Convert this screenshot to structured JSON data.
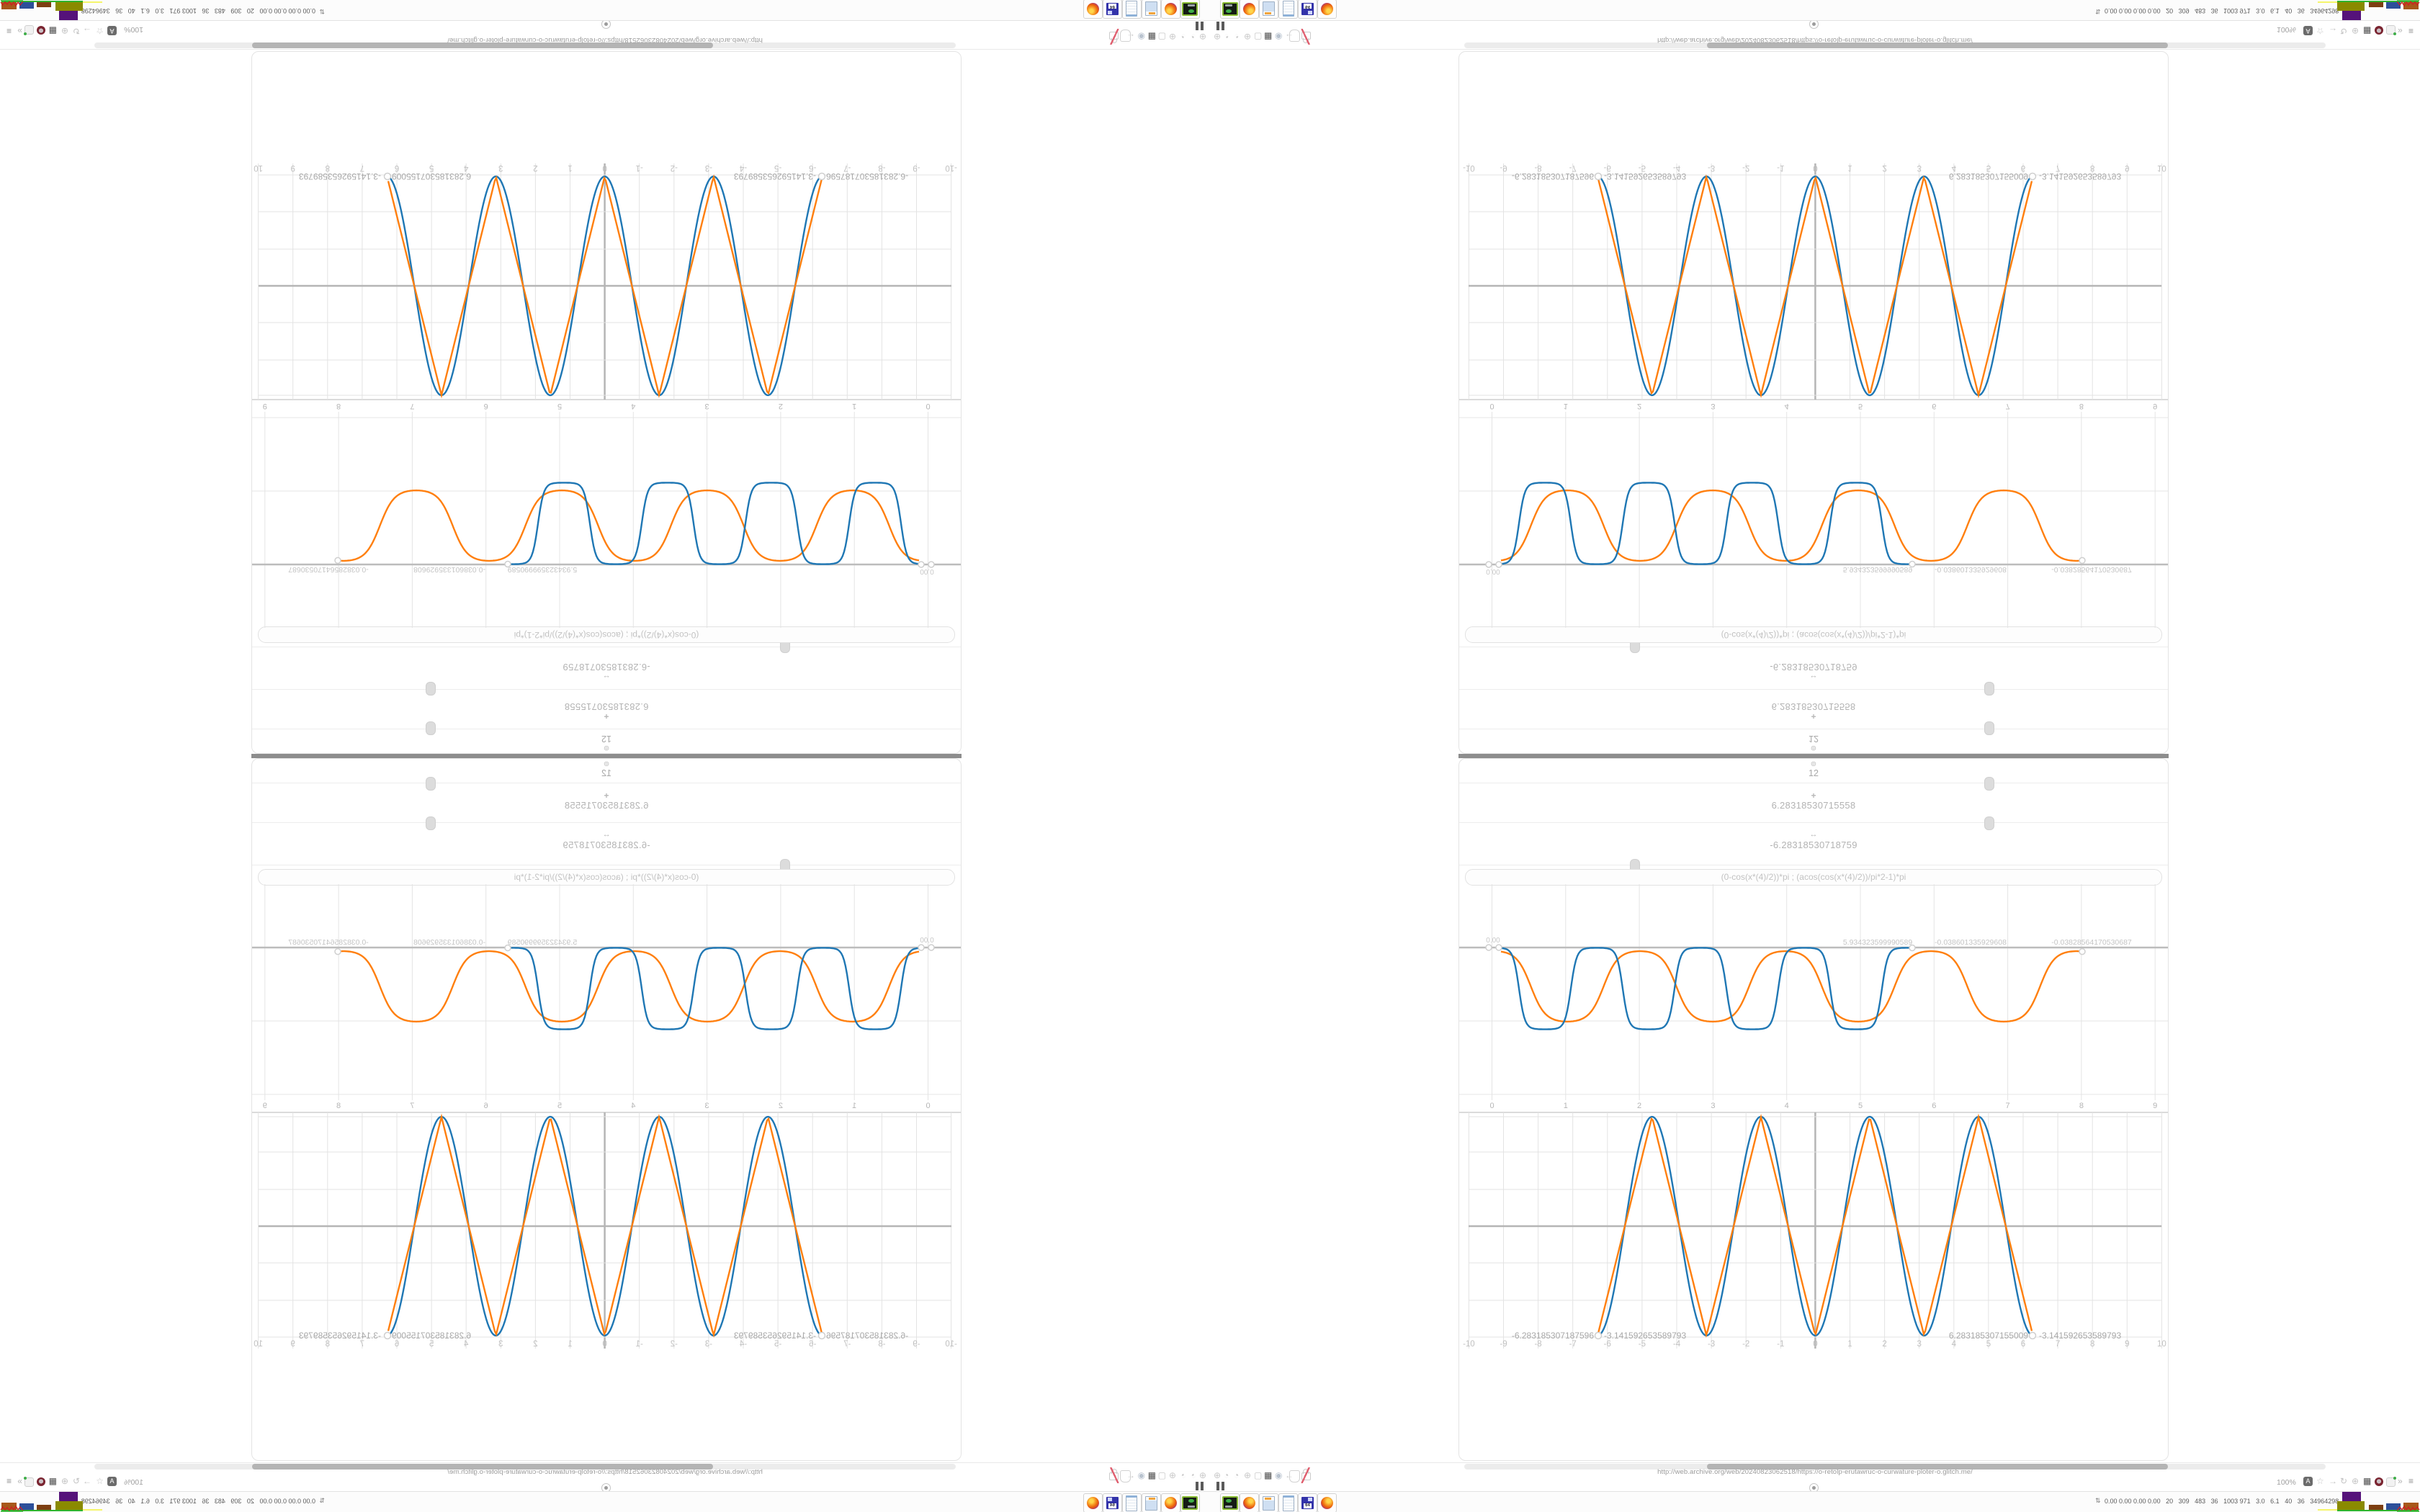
{
  "browser": {
    "url": "http://web.archive.org/web/20240823062518/https://o-retolp-erutawruc-o-curwature-ploter-o.glitch.me/",
    "zoom_level": "100%",
    "reader_label": "A",
    "toolbar_left_icons": [
      {
        "name": "globe-icon",
        "glyph": "⊕"
      },
      {
        "name": "gauge-icon",
        "glyph": "◔"
      },
      {
        "name": "gauge-icon-2",
        "glyph": "◔"
      },
      {
        "name": "globe-icon-2",
        "glyph": "⊕"
      },
      {
        "name": "folder-icon",
        "glyph": "▢"
      },
      {
        "name": "trash-icon",
        "glyph": "▦"
      },
      {
        "name": "badge-icon",
        "glyph": "◉"
      },
      {
        "name": "back-arrow-icon",
        "glyph": "←"
      }
    ],
    "toolbar_right_icons": [
      {
        "name": "star-icon",
        "glyph": "☆"
      },
      {
        "name": "forward-arrow-icon",
        "glyph": "→"
      },
      {
        "name": "refresh-icon",
        "glyph": "↻"
      },
      {
        "name": "globe-icon",
        "glyph": "⊕"
      },
      {
        "name": "trash-icon",
        "glyph": "▦"
      },
      {
        "name": "more-chevron-icon",
        "glyph": "»"
      },
      {
        "name": "menu-icon",
        "glyph": "≡"
      }
    ],
    "collapse_chevron": "∧"
  },
  "plotter": {
    "gear_icon": "⊚",
    "points_value": "12",
    "plus_icon": "+",
    "slider1_value": "6.28318530715558",
    "range_icon": "↔",
    "slider2_value": "-6.28318530718759",
    "formula": "(0-cos(x*(4)/2))*pi ; (acos(cos(x*(4)/2))/pi*2-1)*pi"
  },
  "chart_data": [
    {
      "type": "line",
      "position": "middle-chart",
      "title": "",
      "xlabel": "",
      "ylabel": "",
      "x_axis": {
        "min": 0,
        "max": 9,
        "step": 1,
        "tick_labels": [
          "0",
          "1",
          "2",
          "3",
          "4",
          "5",
          "6",
          "7",
          "8",
          "9"
        ]
      },
      "y_axis": {
        "origin_label": "0.00",
        "zero_line": true,
        "range": [
          -4.7,
          3.1
        ]
      },
      "grid": true,
      "series": [
        {
          "name": "smoothed-square-wave-blue",
          "color": "#1f77b4",
          "shape": "flattened cosine wells from 0 down to -pi",
          "period_units": 1.41,
          "first_trough_x": 0.72,
          "x_start": 0.13,
          "x_end": 5.71,
          "y_min": -3.1416,
          "y_max": 0
        },
        {
          "name": "smoothed-square-wave-orange",
          "color": "#ff7f0e",
          "shape": "flattened cosine wells from 0 down to -pi",
          "period_units": 1.97,
          "first_trough_x": 1.02,
          "x_start": 0.13,
          "x_end": 8.02,
          "y_min": -3.1416,
          "y_max": 0
        }
      ],
      "endpoint_labels": [
        "5.934323599990589",
        "-0.038601335929608",
        "-0.03828564170530687"
      ],
      "legend": false
    },
    {
      "type": "line",
      "position": "bottom-chart",
      "title": "",
      "xlabel": "",
      "ylabel": "",
      "x_axis": {
        "min": -10,
        "max": 10,
        "step": 1
      },
      "top_axis": {
        "min": 0,
        "max": 9,
        "step": 1
      },
      "y_axis": {
        "range": [
          -3.5,
          3.5
        ],
        "zero_line": true
      },
      "grid": true,
      "series": [
        {
          "name": "cosine-wave-blue",
          "color": "#1f77b4",
          "formula": "y = (0-cos(x*4/2))*pi",
          "x_start": -6.2832,
          "x_end": 6.2832,
          "amplitude": 3.1416,
          "period": 3.1416
        },
        {
          "name": "triangle-wave-orange",
          "color": "#ff7f0e",
          "formula": "y = (acos(cos(x*4/2))/pi*2-1)*pi",
          "x_start": -6.2832,
          "x_end": 6.2832,
          "amplitude": 3.1416,
          "period": 3.1416
        }
      ],
      "endpoint_labels": {
        "left_x": "-6.283185307187596",
        "left_y": "-3.141592653589793",
        "right_x": "6.283185307155009",
        "right_y": "-3.141592653589793"
      },
      "legend": false
    }
  ],
  "taskbar": {
    "launchers": [
      {
        "name": "drive-launcher-icon"
      },
      {
        "name": "firefox-launcher-icon"
      },
      {
        "name": "calculator-launcher-icon"
      },
      {
        "name": "notepad-launcher-icon"
      },
      {
        "name": "floppy-launcher-icon",
        "label": "64"
      },
      {
        "name": "firefox-launcher-icon-2"
      }
    ],
    "sysmon_icon": "⇅",
    "sysmon_text": "0.00 0.00 0.00 0.00   20   309   483   36   1003 971   3.0   6.1   40   36   34964298"
  },
  "colors": {
    "series_blue": "#1f77b4",
    "series_orange": "#ff7f0e",
    "seam_gray": "#8d8d8d",
    "paleyellow": "#f5f56a",
    "olive": "#8a8a00",
    "purple": "#55127a",
    "brown": "#7d3f12",
    "blue": "#2d4f9a",
    "orangebrown": "#a8581a",
    "green": "#2db42d",
    "red": "#cc2222"
  },
  "layout_note": "screenshot is a 4-way mirror: base desktop quadrant repeated flipped horizontally, vertically and both"
}
